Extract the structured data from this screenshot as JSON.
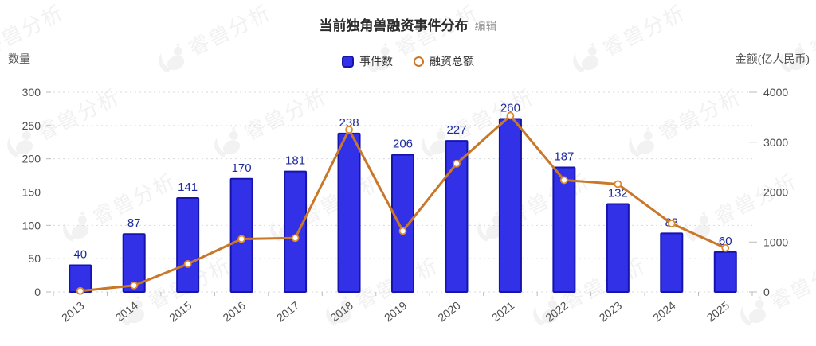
{
  "title": {
    "text": "当前独角兽融资事件分布",
    "edit_label": "编辑"
  },
  "legend": {
    "items": [
      {
        "label": "事件数",
        "type": "bar"
      },
      {
        "label": "融资总额",
        "type": "line"
      }
    ]
  },
  "axes": {
    "left": {
      "name": "数量",
      "ticks": [
        0,
        50,
        100,
        150,
        200,
        250,
        300
      ]
    },
    "right": {
      "name": "金额(亿人民币)",
      "ticks": [
        0,
        1000,
        2000,
        3000,
        4000
      ]
    }
  },
  "watermark": {
    "text": "睿兽分析"
  },
  "colors": {
    "bar_fill": "#3231e8",
    "bar_border": "#1514ad",
    "value_label": "#1f2c9c",
    "line": "#c9782a",
    "marker_ring": "#dd8a30",
    "marker_fill": "#ffffff",
    "axis_text": "#4d4d4d",
    "axis_name": "#555555",
    "grid": "#d9d9d9",
    "tick": "#bbbbbb",
    "title": "#2d2d2d",
    "edit": "#9a9a9a",
    "legend_text": "#333333"
  },
  "chart_data": {
    "type": "bar",
    "title": "当前独角兽融资事件分布",
    "categories": [
      "2013",
      "2014",
      "2015",
      "2016",
      "2017",
      "2018",
      "2019",
      "2020",
      "2021",
      "2022",
      "2023",
      "2024",
      "2025"
    ],
    "series": [
      {
        "name": "事件数",
        "type": "bar",
        "axis": "left",
        "values": [
          40,
          87,
          141,
          170,
          181,
          238,
          206,
          227,
          260,
          187,
          132,
          88,
          60
        ]
      },
      {
        "name": "融资总额",
        "type": "line",
        "axis": "right",
        "values": [
          20,
          130,
          560,
          1060,
          1080,
          3250,
          1220,
          2570,
          3530,
          2240,
          2160,
          1370,
          880
        ]
      }
    ],
    "ylabel_left": "数量",
    "ylabel_right": "金额(亿人民币)",
    "ylim_left": [
      0,
      300
    ],
    "ylim_right": [
      0,
      4000
    ],
    "grid": true,
    "grid_style": "dotted",
    "legend_position": "top",
    "bar_value_labels_shown": true
  }
}
